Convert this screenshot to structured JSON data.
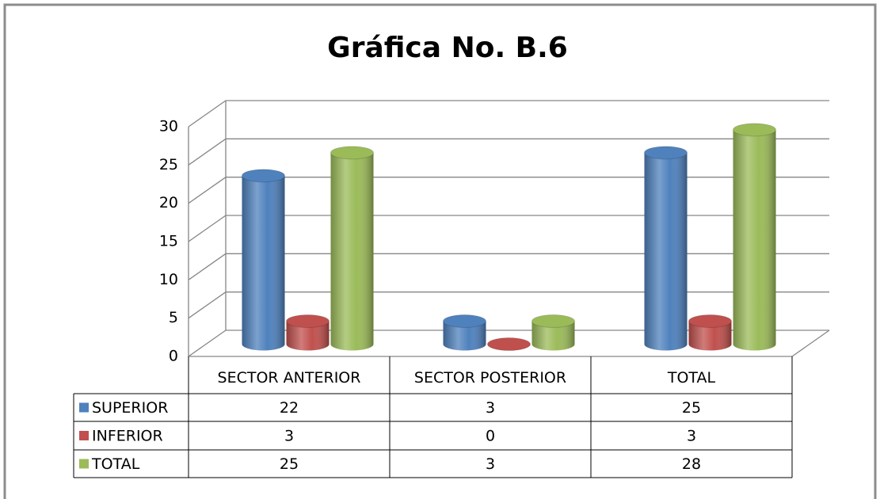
{
  "chart_data": {
    "type": "bar",
    "title": "Gráfica No. B.6",
    "categories": [
      "SECTOR ANTERIOR",
      "SECTOR POSTERIOR",
      "TOTAL"
    ],
    "series": [
      {
        "name": "SUPERIOR",
        "color": "#4f81bd",
        "values": [
          22,
          3,
          25
        ]
      },
      {
        "name": "INFERIOR",
        "color": "#c0504d",
        "values": [
          3,
          0,
          3
        ]
      },
      {
        "name": "TOTAL",
        "color": "#9bbb59",
        "values": [
          25,
          3,
          28
        ]
      }
    ],
    "ylim": [
      0,
      30
    ],
    "yticks": [
      0,
      5,
      10,
      15,
      20,
      25,
      30
    ],
    "grid": true,
    "data_table": true
  }
}
